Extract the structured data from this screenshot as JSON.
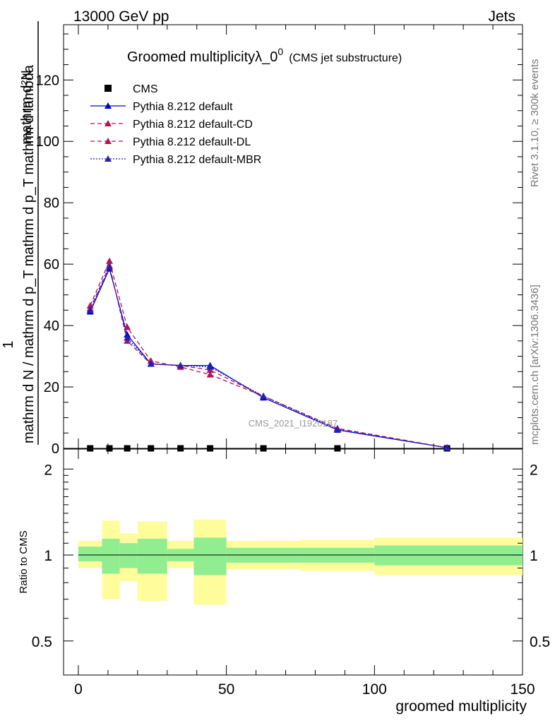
{
  "header": {
    "left": "13000 GeV pp",
    "right": "Jets"
  },
  "side_labels": {
    "rivet": "Rivet 3.1.10, ≥ 300k events",
    "mcplots": "mcplots.cern.ch [arXiv:1306.3436]"
  },
  "chart_data": [
    {
      "type": "line",
      "title": "Groomed multiplicityλ_0",
      "title_superscript": "0",
      "subtitle": "(CMS jet substructure)",
      "watermark": "CMS_2021_I1920187",
      "ylabel_top": "1",
      "ylabel_numerator": "mathrm d²N",
      "ylabel_denominator": "mathrm d N / mathrm d p_T mathrm d p_T mathrm d lambda",
      "xlim": [
        -5,
        150
      ],
      "ylim": [
        0,
        138
      ],
      "yticks": [
        0,
        20,
        40,
        60,
        80,
        100,
        120
      ],
      "ytick_labels": [
        "0",
        "20",
        "40",
        "60",
        "80",
        "100",
        "120"
      ],
      "legend_position": "top-left",
      "series": [
        {
          "name": "CMS",
          "color": "#000000",
          "x": [
            4,
            10.5,
            16.5,
            24.5,
            34.5,
            44.5,
            62.5,
            87.5,
            124.5
          ],
          "values": [
            0,
            0,
            0,
            0,
            0,
            0,
            0,
            0,
            0
          ]
        },
        {
          "name": "Pythia 8.212 default",
          "color": "#0000cc",
          "x": [
            4,
            10.5,
            16.5,
            24.5,
            34.5,
            44.5,
            62.5,
            87.5,
            124.5
          ],
          "values": [
            44.5,
            58.5,
            37,
            27.5,
            27,
            27,
            16.5,
            6,
            0.2
          ]
        },
        {
          "name": "Pythia 8.212 default-CD",
          "color": "#b0145a",
          "x": [
            4,
            10.5,
            16.5,
            24.5,
            34.5,
            44.5,
            62.5,
            87.5,
            124.5
          ],
          "values": [
            46.5,
            61,
            39.5,
            28.5,
            26.5,
            24,
            17,
            6.5,
            0.2
          ]
        },
        {
          "name": "Pythia 8.212 default-DL",
          "color": "#b0145a",
          "x": [
            4,
            10.5,
            16.5,
            24.5,
            34.5,
            44.5,
            62.5,
            87.5,
            124.5
          ],
          "values": [
            45.5,
            59.5,
            35,
            27.5,
            27,
            25.5,
            17,
            6.5,
            0.2
          ]
        },
        {
          "name": "Pythia 8.212 default-MBR",
          "color": "#2020bb",
          "x": [
            4,
            10.5,
            16.5,
            24.5,
            34.5,
            44.5,
            62.5,
            87.5,
            124.5
          ],
          "values": [
            45,
            59,
            36,
            27.5,
            27,
            26.5,
            17,
            6.2,
            0.2
          ]
        }
      ]
    },
    {
      "type": "area",
      "ylabel": "Ratio to CMS",
      "xlabel": "groomed multiplicity",
      "xlim": [
        -5,
        150
      ],
      "ylim": [
        0.38,
        2.35
      ],
      "yscale": "log",
      "yticks": [
        0.5,
        1,
        2
      ],
      "ytick_labels": [
        "0.5",
        "1",
        "2"
      ],
      "xticks": [
        0,
        50,
        100,
        150
      ],
      "xtick_labels": [
        "0",
        "50",
        "100",
        "150"
      ],
      "reference_line": 1,
      "bins": [
        {
          "x0": 0,
          "x1": 8,
          "inner": [
            0.95,
            1.07
          ],
          "outer": [
            0.9,
            1.12
          ]
        },
        {
          "x0": 8,
          "x1": 14,
          "inner": [
            0.86,
            1.14
          ],
          "outer": [
            0.7,
            1.32
          ]
        },
        {
          "x0": 14,
          "x1": 20,
          "inner": [
            0.9,
            1.1
          ],
          "outer": [
            0.81,
            1.19
          ]
        },
        {
          "x0": 20,
          "x1": 30,
          "inner": [
            0.86,
            1.14
          ],
          "outer": [
            0.69,
            1.31
          ]
        },
        {
          "x0": 30,
          "x1": 39,
          "inner": [
            0.95,
            1.05
          ],
          "outer": [
            0.9,
            1.12
          ]
        },
        {
          "x0": 39,
          "x1": 50,
          "inner": [
            0.85,
            1.15
          ],
          "outer": [
            0.67,
            1.33
          ]
        },
        {
          "x0": 50,
          "x1": 75,
          "inner": [
            0.94,
            1.06
          ],
          "outer": [
            0.89,
            1.12
          ]
        },
        {
          "x0": 75,
          "x1": 100,
          "inner": [
            0.94,
            1.06
          ],
          "outer": [
            0.88,
            1.13
          ]
        },
        {
          "x0": 100,
          "x1": 150,
          "inner": [
            0.92,
            1.08
          ],
          "outer": [
            0.85,
            1.15
          ]
        }
      ],
      "band_colors": {
        "inner": "#90ee90",
        "outer": "#fffc9c"
      }
    }
  ]
}
